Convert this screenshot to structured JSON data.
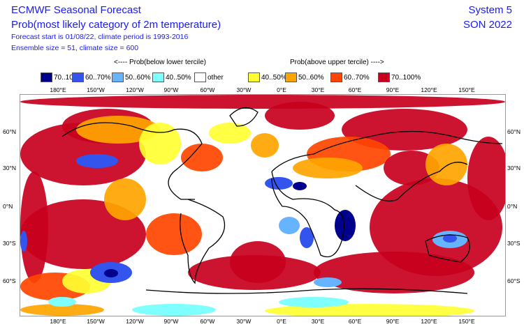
{
  "header": {
    "title": "ECMWF Seasonal Forecast",
    "subtitle": "Prob(most likely category of 2m temperature)",
    "forecast_info": "Forecast start is 01/08/22, climate period is 1993-2016",
    "ensemble_info": "Ensemble size = 51, climate size = 600",
    "system": "System 5",
    "season": "SON 2022"
  },
  "legend": {
    "below_label": "<---- Prob(below lower tercile)",
    "above_label": "Prob(above upper tercile) ---->",
    "items": [
      {
        "label": "70..100%",
        "color": "#00008c"
      },
      {
        "label": "60..70%",
        "color": "#3355ee"
      },
      {
        "label": "50..60%",
        "color": "#66b3ff"
      },
      {
        "label": "40..50%",
        "color": "#80ffff"
      },
      {
        "label": "other",
        "color": "#ffffff"
      },
      {
        "label": "40..50%",
        "color": "#ffff33"
      },
      {
        "label": "50..60%",
        "color": "#ffa500"
      },
      {
        "label": "60..70%",
        "color": "#ff4500"
      },
      {
        "label": "70..100%",
        "color": "#c8001e"
      }
    ]
  },
  "axes": {
    "lon": [
      "180°E",
      "150°W",
      "120°W",
      "90°W",
      "60°W",
      "30°W",
      "0°E",
      "30°E",
      "60°E",
      "90°E",
      "120°E",
      "150°E"
    ],
    "lat": [
      "60°N",
      "30°N",
      "0°N",
      "30°S",
      "60°S"
    ]
  }
}
